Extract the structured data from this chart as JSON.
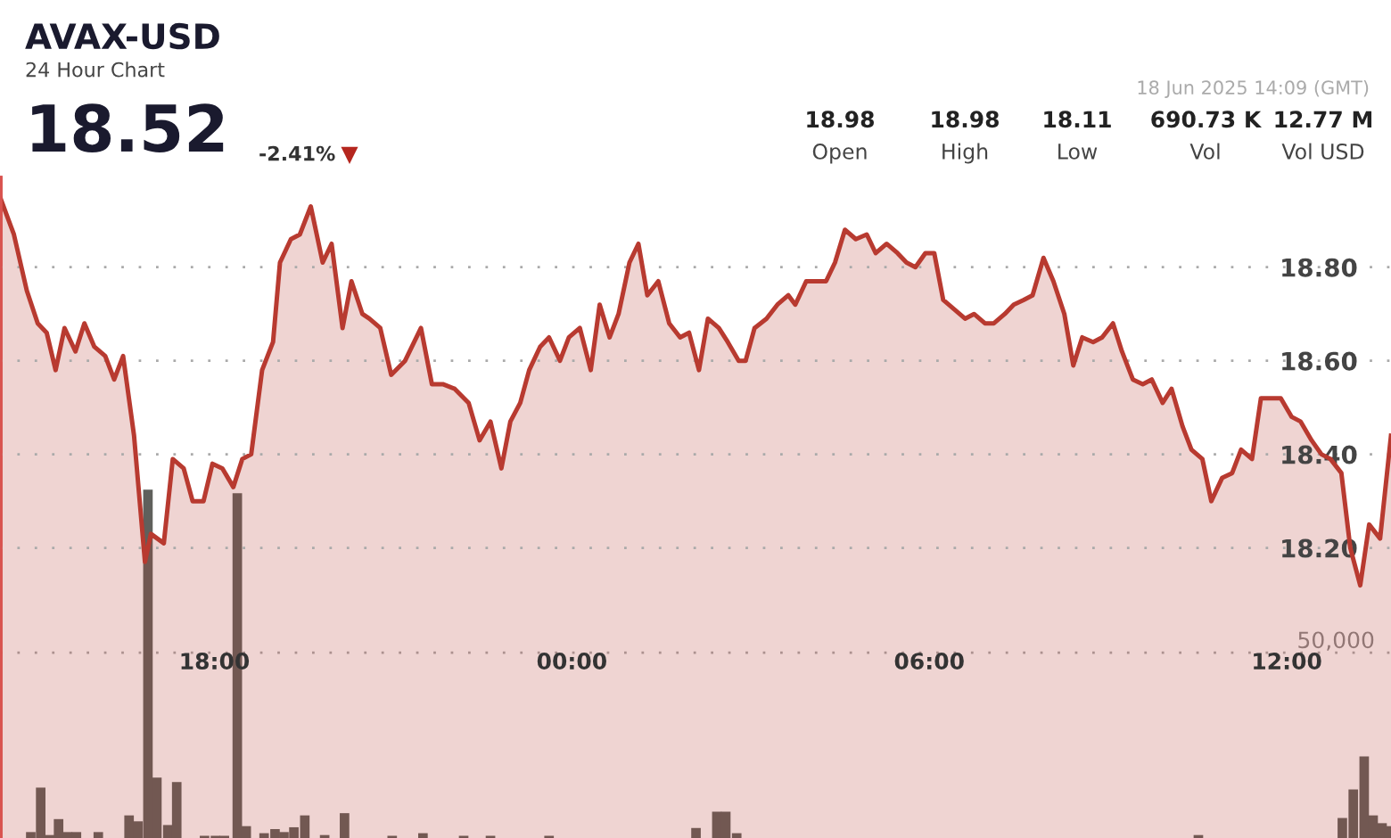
{
  "chart_data": {
    "type": "area",
    "title": "AVAX-USD",
    "subtitle": "24 Hour Chart",
    "annotations": [
      "18.52",
      "-2.41%",
      "▼",
      "18 Jun 2025 14:09 (GMT)",
      "18.98",
      "Open",
      "18.98",
      "High",
      "18.11",
      "Low",
      "690.73 K",
      "Vol",
      "12.77 M",
      "Vol USD"
    ],
    "xlim": [
      "2025-06-17T14:24",
      "2025-06-18T13:45"
    ],
    "xticks": [
      {
        "value": "2025-06-17T18:00",
        "label": "18:00"
      },
      {
        "value": "2025-06-18T00:00",
        "label": "00:00"
      },
      {
        "value": "2025-06-18T06:00",
        "label": "06:00"
      },
      {
        "value": "2025-06-18T12:00",
        "label": "12:00"
      }
    ],
    "ylim": [
      17.58,
      18.99
    ],
    "yticks": [
      {
        "value": 18.2,
        "label": "18.20"
      },
      {
        "value": 18.4,
        "label": "18.40"
      },
      {
        "value": 18.6,
        "label": "18.60"
      },
      {
        "value": 18.8,
        "label": "18.80"
      }
    ],
    "y2lim": [
      0,
      178000
    ],
    "y2ticks": [
      {
        "value": 50000,
        "label": "50,000"
      }
    ],
    "grid": "y",
    "series": [
      {
        "color": "#b83a30",
        "x": [
          "2025-06-17T14:24",
          "2025-06-17T14:38",
          "2025-06-17T14:51",
          "2025-06-17T15:02",
          "2025-06-17T15:11",
          "2025-06-17T15:20",
          "2025-06-17T15:29",
          "2025-06-17T15:40",
          "2025-06-17T15:49",
          "2025-06-17T15:59",
          "2025-06-17T16:10",
          "2025-06-17T16:19",
          "2025-06-17T16:28",
          "2025-06-17T16:39",
          "2025-06-17T16:50",
          "2025-06-17T16:56",
          "2025-06-17T17:09",
          "2025-06-17T17:18",
          "2025-06-17T17:29",
          "2025-06-17T17:38",
          "2025-06-17T17:49",
          "2025-06-17T17:58",
          "2025-06-17T18:08",
          "2025-06-17T18:19",
          "2025-06-17T18:28",
          "2025-06-17T18:37",
          "2025-06-17T18:48",
          "2025-06-17T18:59",
          "2025-06-17T19:06",
          "2025-06-17T19:17",
          "2025-06-17T19:26",
          "2025-06-17T19:37",
          "2025-06-17T19:49",
          "2025-06-17T19:58",
          "2025-06-17T20:09",
          "2025-06-17T20:18",
          "2025-06-17T20:29",
          "2025-06-17T20:36",
          "2025-06-17T20:47",
          "2025-06-17T20:58",
          "2025-06-17T21:12",
          "2025-06-17T21:28",
          "2025-06-17T21:39",
          "2025-06-17T21:50",
          "2025-06-17T22:02",
          "2025-06-17T22:16",
          "2025-06-17T22:27",
          "2025-06-17T22:38",
          "2025-06-17T22:49",
          "2025-06-17T22:58",
          "2025-06-17T23:08",
          "2025-06-17T23:17",
          "2025-06-17T23:28",
          "2025-06-17T23:37",
          "2025-06-17T23:48",
          "2025-06-17T23:57",
          "2025-06-18T00:08",
          "2025-06-18T00:19",
          "2025-06-18T00:28",
          "2025-06-18T00:38",
          "2025-06-18T00:47",
          "2025-06-18T00:58",
          "2025-06-18T01:07",
          "2025-06-18T01:16",
          "2025-06-18T01:27",
          "2025-06-18T01:38",
          "2025-06-18T01:49",
          "2025-06-18T01:58",
          "2025-06-18T02:08",
          "2025-06-18T02:17",
          "2025-06-18T02:28",
          "2025-06-18T02:37",
          "2025-06-18T02:48",
          "2025-06-18T02:55",
          "2025-06-18T03:04",
          "2025-06-18T03:16",
          "2025-06-18T03:27",
          "2025-06-18T03:38",
          "2025-06-18T03:45",
          "2025-06-18T03:56",
          "2025-06-18T04:07",
          "2025-06-18T04:16",
          "2025-06-18T04:25",
          "2025-06-18T04:35",
          "2025-06-18T04:46",
          "2025-06-18T04:57",
          "2025-06-18T05:06",
          "2025-06-18T05:17",
          "2025-06-18T05:28",
          "2025-06-18T05:37",
          "2025-06-18T05:46",
          "2025-06-18T05:56",
          "2025-06-18T06:05",
          "2025-06-18T06:14",
          "2025-06-18T06:25",
          "2025-06-18T06:36",
          "2025-06-18T06:45",
          "2025-06-18T06:56",
          "2025-06-18T07:05",
          "2025-06-18T07:16",
          "2025-06-18T07:25",
          "2025-06-18T07:35",
          "2025-06-18T07:44",
          "2025-06-18T07:55",
          "2025-06-18T08:05",
          "2025-06-18T08:16",
          "2025-06-18T08:25",
          "2025-06-18T08:34",
          "2025-06-18T08:45",
          "2025-06-18T08:54",
          "2025-06-18T09:05",
          "2025-06-18T09:14",
          "2025-06-18T09:25",
          "2025-06-18T09:35",
          "2025-06-18T09:44",
          "2025-06-18T09:55",
          "2025-06-18T10:04",
          "2025-06-18T10:15",
          "2025-06-18T10:24",
          "2025-06-18T10:35",
          "2025-06-18T10:44",
          "2025-06-18T10:55",
          "2025-06-18T11:05",
          "2025-06-18T11:14",
          "2025-06-18T11:25",
          "2025-06-18T11:34",
          "2025-06-18T11:45",
          "2025-06-18T11:54",
          "2025-06-18T12:05",
          "2025-06-18T12:14",
          "2025-06-18T12:25",
          "2025-06-18T12:35",
          "2025-06-18T12:44",
          "2025-06-18T12:55",
          "2025-06-18T13:04",
          "2025-06-18T13:14",
          "2025-06-18T13:23",
          "2025-06-18T13:34",
          "2025-06-18T13:45"
        ],
        "values": [
          18.95,
          18.87,
          18.75,
          18.68,
          18.66,
          18.58,
          18.67,
          18.62,
          18.68,
          18.63,
          18.61,
          18.56,
          18.61,
          18.44,
          18.17,
          18.23,
          18.21,
          18.39,
          18.37,
          18.3,
          18.3,
          18.38,
          18.37,
          18.33,
          18.39,
          18.4,
          18.58,
          18.64,
          18.81,
          18.86,
          18.87,
          18.93,
          18.81,
          18.85,
          18.67,
          18.77,
          18.7,
          18.69,
          18.67,
          18.57,
          18.6,
          18.67,
          18.55,
          18.55,
          18.54,
          18.51,
          18.43,
          18.47,
          18.37,
          18.47,
          18.51,
          18.58,
          18.63,
          18.65,
          18.6,
          18.65,
          18.67,
          18.58,
          18.72,
          18.65,
          18.7,
          18.81,
          18.85,
          18.74,
          18.77,
          18.68,
          18.65,
          18.66,
          18.58,
          18.69,
          18.67,
          18.64,
          18.6,
          18.6,
          18.67,
          18.69,
          18.72,
          18.74,
          18.72,
          18.77,
          18.77,
          18.77,
          18.81,
          18.88,
          18.86,
          18.87,
          18.83,
          18.85,
          18.83,
          18.81,
          18.8,
          18.83,
          18.83,
          18.73,
          18.71,
          18.69,
          18.7,
          18.68,
          18.68,
          18.7,
          18.72,
          18.73,
          18.74,
          18.82,
          18.77,
          18.7,
          18.59,
          18.65,
          18.64,
          18.65,
          18.68,
          18.62,
          18.56,
          18.55,
          18.56,
          18.51,
          18.54,
          18.46,
          18.41,
          18.39,
          18.3,
          18.35,
          18.36,
          18.41,
          18.39,
          18.52,
          18.52,
          18.52,
          18.48,
          18.47,
          18.43,
          18.4,
          18.39,
          18.36,
          18.2,
          18.12,
          18.25,
          18.22,
          18.44
        ]
      },
      {
        "type": "bar",
        "axis": "y2",
        "color": "#5f605c",
        "x": [
          "2025-06-17T14:55",
          "2025-06-17T15:05",
          "2025-06-17T15:14",
          "2025-06-17T15:23",
          "2025-06-17T15:32",
          "2025-06-17T15:41",
          "2025-06-17T16:03",
          "2025-06-17T16:34",
          "2025-06-17T16:43",
          "2025-06-17T16:53",
          "2025-06-17T17:02",
          "2025-06-17T17:13",
          "2025-06-17T17:22",
          "2025-06-17T17:50",
          "2025-06-17T18:01",
          "2025-06-17T18:10",
          "2025-06-17T18:23",
          "2025-06-17T18:32",
          "2025-06-17T18:50",
          "2025-06-17T19:01",
          "2025-06-17T19:10",
          "2025-06-17T19:20",
          "2025-06-17T19:31",
          "2025-06-17T19:51",
          "2025-06-17T20:11",
          "2025-06-17T20:59",
          "2025-06-17T21:30",
          "2025-06-17T22:11",
          "2025-06-17T22:38",
          "2025-06-17T23:37",
          "2025-06-18T02:05",
          "2025-06-18T02:26",
          "2025-06-18T02:35",
          "2025-06-18T02:46",
          "2025-06-18T10:31",
          "2025-06-18T12:56",
          "2025-06-18T13:07",
          "2025-06-18T13:18",
          "2025-06-18T13:27",
          "2025-06-18T13:36",
          "2025-06-18T13:43"
        ],
        "values": [
          1600,
          13600,
          800,
          5100,
          1600,
          1600,
          1600,
          6100,
          4500,
          94000,
          16300,
          3500,
          15100,
          600,
          600,
          600,
          93000,
          3200,
          1300,
          2400,
          1600,
          2900,
          6100,
          800,
          6700,
          600,
          1300,
          600,
          600,
          600,
          2700,
          7100,
          7100,
          1300,
          800,
          5400,
          13100,
          22000,
          6100,
          4000,
          3200
        ]
      }
    ]
  }
}
